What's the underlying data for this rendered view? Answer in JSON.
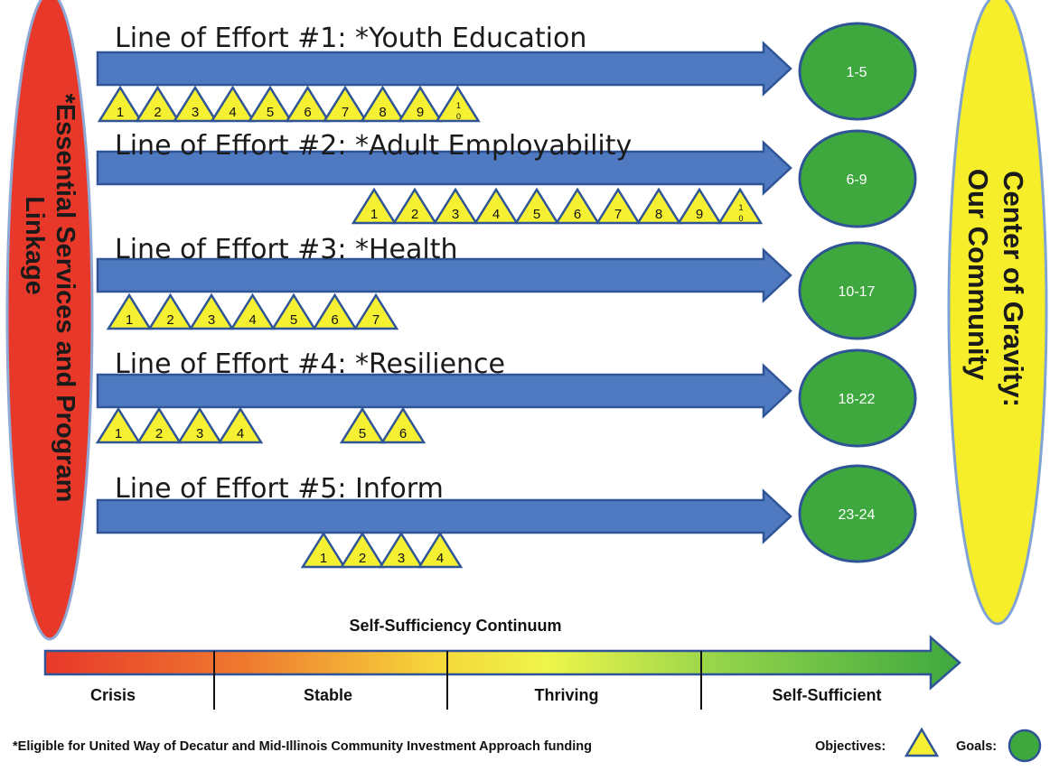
{
  "lines_of_effort": [
    {
      "title": "Line of Effort #1:  *Youth Education",
      "goals": "1-5",
      "objectives": [
        "1",
        "2",
        "3",
        "4",
        "5",
        "6",
        "7",
        "8",
        "9",
        "10"
      ]
    },
    {
      "title": "Line of Effort #2:  *Adult Employability",
      "goals": "6-9",
      "objectives": [
        "1",
        "2",
        "3",
        "4",
        "5",
        "6",
        "7",
        "8",
        "9",
        "10"
      ]
    },
    {
      "title": "Line of Effort #3:  *Health",
      "goals": "10-17",
      "objectives": [
        "1",
        "2",
        "3",
        "4",
        "5",
        "6",
        "7"
      ]
    },
    {
      "title": "Line of Effort #4:  *Resilience",
      "goals": "18-22",
      "objectives": [
        "1",
        "2",
        "3",
        "4",
        "5",
        "6"
      ]
    },
    {
      "title": "Line of Effort #5:  Inform",
      "goals": "23-24",
      "objectives": [
        "1",
        "2",
        "3",
        "4"
      ]
    }
  ],
  "left_banner": {
    "line1": "*Essential Services and Program",
    "line2": "Linkage"
  },
  "center_of_gravity": {
    "line1": "Center of Gravity:",
    "line2": "Our Community"
  },
  "continuum": {
    "title": "Self-Sufficiency Continuum",
    "stages": [
      "Crisis",
      "Stable",
      "Thriving",
      "Self-Sufficient"
    ]
  },
  "footer": {
    "note": "*Eligible  for United Way of Decatur and Mid-Illinois  Community Investment Approach funding",
    "objectives_label": "Objectives:",
    "goals_label": "Goals:"
  },
  "colors": {
    "arrow": "#4f79c0",
    "arrow_stroke": "#2f5597",
    "goal_fill": "#3ea83f",
    "goal_stroke": "#2f5597",
    "triangle_fill": "#f5f032",
    "triangle_stroke": "#2f5597",
    "left_banner": "#e8382a",
    "center_fill": "#f6ee2a"
  }
}
